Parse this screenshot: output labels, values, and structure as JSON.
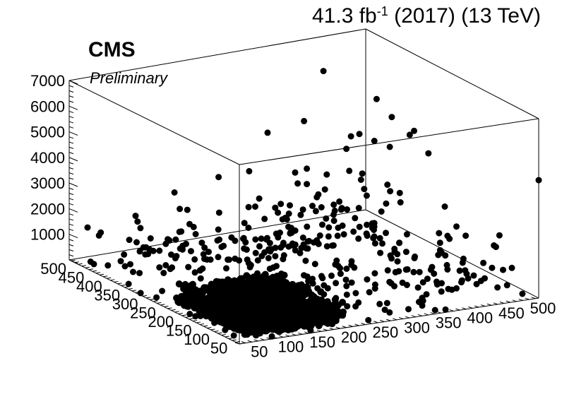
{
  "header": {
    "lumi_value": "41.3 fb",
    "lumi_exponent": "-1",
    "lumi_rest": " (2017) (13 TeV)"
  },
  "experiment": "CMS",
  "status": "Preliminary",
  "chart_data": {
    "type": "scatter3d",
    "title": "",
    "xlabel": "",
    "ylabel": "",
    "zlabel": "",
    "xlim": [
      25,
      500
    ],
    "ylim": [
      25,
      500
    ],
    "zlim": [
      0,
      7000
    ],
    "x_ticks": [
      "50",
      "100",
      "150",
      "200",
      "250",
      "300",
      "350",
      "400",
      "450",
      "500"
    ],
    "y_ticks": [
      "50",
      "100",
      "150",
      "200",
      "250",
      "300",
      "350",
      "400",
      "450",
      "500"
    ],
    "z_ticks": [
      "1000",
      "2000",
      "3000",
      "4000",
      "5000",
      "6000",
      "7000"
    ],
    "marker_color": "#000000",
    "dense_core": {
      "x_range": [
        50,
        210
      ],
      "y_range": [
        50,
        250
      ],
      "z_range": [
        0,
        700
      ]
    },
    "points": [
      [
        500,
        25,
        4600
      ],
      [
        210,
        170,
        7000
      ],
      [
        175,
        210,
        6400
      ],
      [
        400,
        450,
        6300
      ],
      [
        140,
        200,
        5100
      ],
      [
        300,
        210,
        5300
      ],
      [
        350,
        220,
        5350
      ],
      [
        330,
        250,
        5400
      ],
      [
        200,
        170,
        4600
      ],
      [
        120,
        250,
        4600
      ],
      [
        230,
        230,
        4500
      ],
      [
        260,
        250,
        4400
      ],
      [
        420,
        300,
        4300
      ],
      [
        470,
        320,
        4600
      ],
      [
        480,
        400,
        4550
      ],
      [
        490,
        460,
        4800
      ],
      [
        470,
        280,
        4000
      ],
      [
        440,
        420,
        3900
      ],
      [
        480,
        470,
        1000
      ],
      [
        480,
        350,
        4200
      ],
      [
        170,
        180,
        3700
      ],
      [
        180,
        190,
        3400
      ],
      [
        200,
        200,
        3000
      ],
      [
        260,
        250,
        3800
      ],
      [
        300,
        270,
        3300
      ],
      [
        320,
        300,
        3600
      ],
      [
        350,
        290,
        3700
      ],
      [
        380,
        310,
        3100
      ],
      [
        250,
        280,
        2800
      ],
      [
        220,
        240,
        2700
      ],
      [
        280,
        260,
        2600
      ],
      [
        310,
        260,
        2500
      ],
      [
        150,
        200,
        2400
      ],
      [
        180,
        220,
        2200
      ],
      [
        260,
        300,
        2300
      ],
      [
        290,
        320,
        2000
      ],
      [
        320,
        340,
        2100
      ],
      [
        340,
        350,
        1900
      ],
      [
        220,
        260,
        1800
      ],
      [
        240,
        290,
        1700
      ],
      [
        270,
        300,
        1600
      ],
      [
        300,
        320,
        1500
      ],
      [
        330,
        330,
        1400
      ],
      [
        360,
        350,
        1300
      ],
      [
        190,
        230,
        1900
      ],
      [
        210,
        250,
        1500
      ],
      [
        230,
        270,
        1300
      ],
      [
        260,
        290,
        1200
      ],
      [
        290,
        300,
        1100
      ],
      [
        310,
        310,
        1000
      ],
      [
        340,
        330,
        900
      ],
      [
        370,
        340,
        800
      ],
      [
        150,
        450,
        500
      ],
      [
        170,
        480,
        400
      ],
      [
        190,
        420,
        600
      ],
      [
        210,
        400,
        500
      ],
      [
        130,
        470,
        300
      ],
      [
        160,
        440,
        700
      ],
      [
        180,
        460,
        800
      ],
      [
        200,
        430,
        300
      ],
      [
        250,
        410,
        600
      ],
      [
        270,
        380,
        700
      ],
      [
        300,
        360,
        500
      ],
      [
        220,
        390,
        900
      ],
      [
        400,
        120,
        300
      ],
      [
        420,
        100,
        400
      ],
      [
        440,
        140,
        500
      ],
      [
        460,
        160,
        300
      ],
      [
        480,
        120,
        600
      ],
      [
        380,
        180,
        500
      ],
      [
        360,
        200,
        400
      ],
      [
        340,
        160,
        300
      ],
      [
        300,
        130,
        400
      ],
      [
        280,
        160,
        500
      ],
      [
        320,
        120,
        600
      ],
      [
        440,
        200,
        700
      ],
      [
        460,
        230,
        600
      ],
      [
        480,
        200,
        400
      ],
      [
        420,
        230,
        500
      ],
      [
        400,
        260,
        300
      ],
      [
        120,
        300,
        300
      ],
      [
        140,
        330,
        400
      ],
      [
        160,
        360,
        500
      ],
      [
        180,
        330,
        600
      ],
      [
        100,
        350,
        400
      ],
      [
        110,
        380,
        300
      ],
      [
        130,
        400,
        500
      ],
      [
        150,
        380,
        700
      ]
    ]
  }
}
